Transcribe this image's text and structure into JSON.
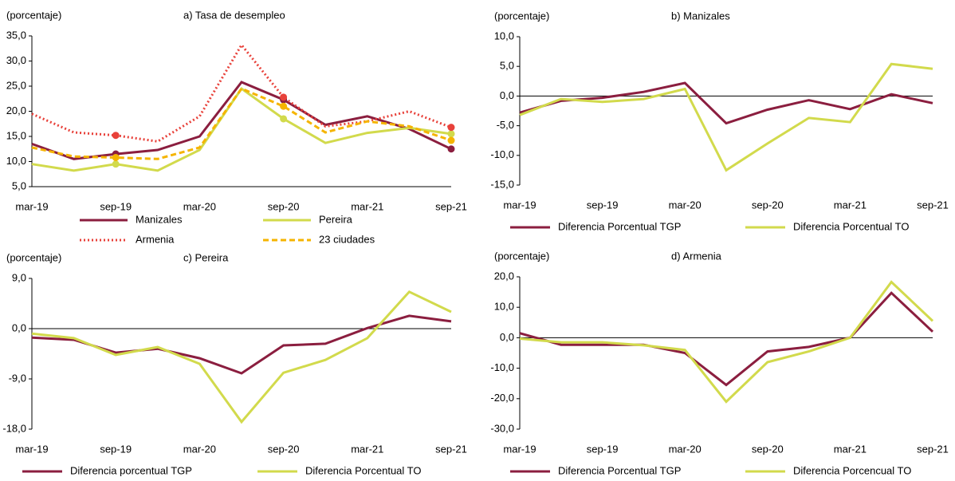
{
  "chart_data": [
    {
      "type": "line",
      "title": "a) Tasa de desempleo",
      "y_label": "(porcentaje)",
      "categories": [
        "mar-19",
        null,
        "sep-19",
        null,
        "mar-20",
        null,
        "sep-20",
        null,
        "mar-21",
        null,
        "sep-21"
      ],
      "ylim": [
        5,
        35
      ],
      "yticks": [
        {
          "value": 5,
          "label": "5,0"
        },
        {
          "value": 10,
          "label": "10,0"
        },
        {
          "value": 15,
          "label": "15,0"
        },
        {
          "value": 20,
          "label": "20,0"
        },
        {
          "value": 25,
          "label": "25,0"
        },
        {
          "value": 30,
          "label": "30,0"
        },
        {
          "value": 35,
          "label": "35,0"
        }
      ],
      "series": [
        {
          "name": "Manizales",
          "color": "#8b1e3f",
          "line_style": "solid",
          "marker_indices": [
            2,
            6,
            10
          ],
          "values": [
            13.5,
            10.5,
            11.5,
            12.3,
            15,
            25.8,
            22.3,
            17.3,
            19,
            16.5,
            12.5
          ]
        },
        {
          "name": "Pereira",
          "color": "#d2da4c",
          "line_style": "solid",
          "marker_indices": [
            2,
            6,
            10
          ],
          "values": [
            9.5,
            8.2,
            9.5,
            8.2,
            12.3,
            24.5,
            18.5,
            13.7,
            15.7,
            16.7,
            15.5
          ]
        },
        {
          "name": "Armenia",
          "color": "#e8413a",
          "line_style": "dotted",
          "marker_indices": [
            2,
            6,
            10
          ],
          "values": [
            19.5,
            15.8,
            15.2,
            14,
            19,
            33.2,
            22.8,
            17,
            18,
            20,
            16.8
          ]
        },
        {
          "name": "23 ciudades",
          "color": "#f5b400",
          "line_style": "dashed",
          "marker_indices": [
            2,
            6,
            10
          ],
          "values": [
            12.8,
            11,
            10.8,
            10.5,
            12.8,
            24.5,
            21,
            15.8,
            18,
            17,
            14.2
          ]
        }
      ]
    },
    {
      "type": "line",
      "title": "b) Manizales",
      "y_label": "(porcentaje)",
      "categories": [
        "mar-19",
        null,
        "sep-19",
        null,
        "mar-20",
        null,
        "sep-20",
        null,
        "mar-21",
        null,
        "sep-21"
      ],
      "ylim": [
        -15,
        10
      ],
      "yticks": [
        {
          "value": -15,
          "label": "-15,0"
        },
        {
          "value": -10,
          "label": "-10,0"
        },
        {
          "value": -5,
          "label": "-5,0"
        },
        {
          "value": 0,
          "label": "0,0"
        },
        {
          "value": 5,
          "label": "5,0"
        },
        {
          "value": 10,
          "label": "10,0"
        }
      ],
      "series": [
        {
          "name": "Diferencia Porcentual TGP",
          "color": "#8b1e3f",
          "line_style": "solid",
          "values": [
            -2.8,
            -0.8,
            -0.3,
            0.7,
            2.2,
            -4.6,
            -2.3,
            -0.7,
            -2.2,
            0.3,
            -1.2
          ]
        },
        {
          "name": "Diferencia Porcentual TO",
          "color": "#d2da4c",
          "line_style": "solid",
          "values": [
            -3.2,
            -0.5,
            -1,
            -0.5,
            1.2,
            -12.5,
            -8,
            -3.7,
            -4.4,
            5.4,
            4.6
          ]
        }
      ]
    },
    {
      "type": "line",
      "title": "c) Pereira",
      "y_label": "(porcentaje)",
      "categories": [
        "mar-19",
        null,
        "sep-19",
        null,
        "mar-20",
        null,
        "sep-20",
        null,
        "mar-21",
        null,
        "sep-21"
      ],
      "ylim": [
        -18,
        9
      ],
      "yticks": [
        {
          "value": -18,
          "label": "-18,0"
        },
        {
          "value": -9,
          "label": "-9,0"
        },
        {
          "value": 0,
          "label": "0,0"
        },
        {
          "value": 9,
          "label": "9,0"
        }
      ],
      "series": [
        {
          "name": "Diferencia porcentual TGP",
          "color": "#8b1e3f",
          "line_style": "solid",
          "values": [
            -1.6,
            -2,
            -4.3,
            -3.6,
            -5.3,
            -8,
            -3,
            -2.7,
            0.1,
            2.3,
            1.3
          ]
        },
        {
          "name": "Diferencia Porcentual TO",
          "color": "#d2da4c",
          "line_style": "solid",
          "values": [
            -0.9,
            -1.7,
            -4.7,
            -3.3,
            -6.3,
            -16.7,
            -7.9,
            -5.6,
            -1.7,
            6.6,
            3
          ]
        }
      ]
    },
    {
      "type": "line",
      "title": "d) Armenia",
      "y_label": "(porcentaje)",
      "categories": [
        "mar-19",
        null,
        "sep-19",
        null,
        "mar-20",
        null,
        "sep-20",
        null,
        "mar-21",
        null,
        "sep-21"
      ],
      "ylim": [
        -30,
        20
      ],
      "yticks": [
        {
          "value": -30,
          "label": "-30,0"
        },
        {
          "value": -20,
          "label": "-20,0"
        },
        {
          "value": -10,
          "label": "-10,0"
        },
        {
          "value": 0,
          "label": "0,0"
        },
        {
          "value": 10,
          "label": "10,0"
        },
        {
          "value": 20,
          "label": "20,0"
        }
      ],
      "series": [
        {
          "name": "Diferencia Porcentual TGP",
          "color": "#8b1e3f",
          "line_style": "solid",
          "values": [
            1.5,
            -2.3,
            -2.3,
            -2.3,
            -5,
            -15.5,
            -4.5,
            -3,
            0,
            14.7,
            2
          ]
        },
        {
          "name": "Diferencia Porcencual TO",
          "color": "#d2da4c",
          "line_style": "solid",
          "values": [
            -0.3,
            -1.5,
            -1.5,
            -2.5,
            -4,
            -21,
            -8,
            -4.5,
            0,
            18.3,
            5.5
          ]
        }
      ]
    }
  ]
}
